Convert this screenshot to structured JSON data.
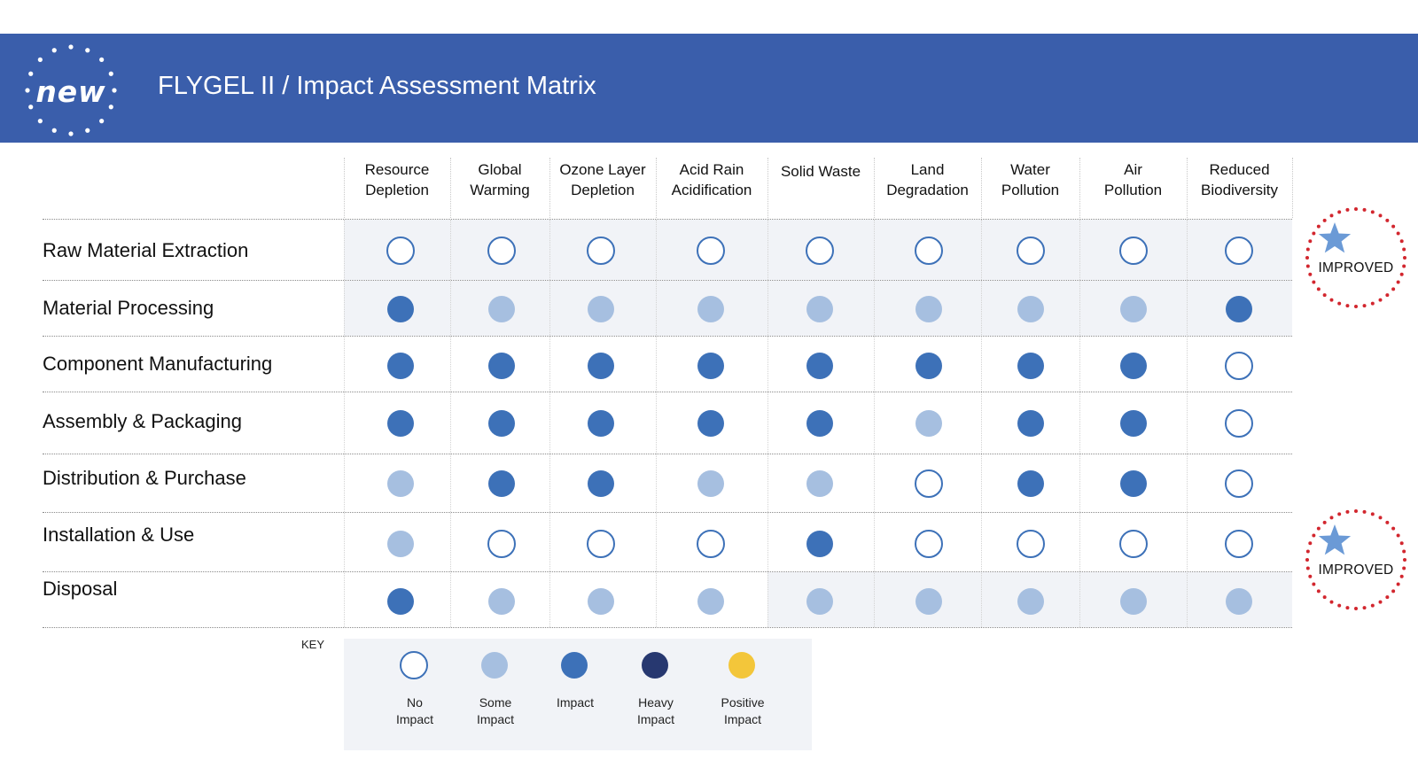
{
  "header": {
    "badge": "new",
    "title": "FLYGEL II / Impact Assessment Matrix",
    "background_color": "#3a5eab"
  },
  "columns": [
    [
      "Resource",
      "Depletion"
    ],
    [
      "Global",
      "Warming"
    ],
    [
      "Ozone Layer",
      "Depletion"
    ],
    [
      "Acid Rain",
      "Acidification"
    ],
    [
      "Solid Waste"
    ],
    [
      "Land",
      "Degradation"
    ],
    [
      "Water",
      "Pollution"
    ],
    [
      "Air",
      "Pollution"
    ],
    [
      "Reduced",
      "Biodiversity"
    ]
  ],
  "rows": [
    {
      "label": "Raw Material Extraction",
      "values": [
        "none",
        "none",
        "none",
        "none",
        "none",
        "none",
        "none",
        "none",
        "none"
      ],
      "improved": true
    },
    {
      "label": "Material Processing",
      "values": [
        "impact",
        "some",
        "some",
        "some",
        "some",
        "some",
        "some",
        "some",
        "impact"
      ],
      "improved": false
    },
    {
      "label": "Component Manufacturing",
      "values": [
        "impact",
        "impact",
        "impact",
        "impact",
        "impact",
        "impact",
        "impact",
        "impact",
        "none"
      ],
      "improved": false
    },
    {
      "label": "Assembly & Packaging",
      "values": [
        "impact",
        "impact",
        "impact",
        "impact",
        "impact",
        "some",
        "impact",
        "impact",
        "none"
      ],
      "improved": false
    },
    {
      "label": "Distribution & Purchase",
      "values": [
        "some",
        "impact",
        "impact",
        "some",
        "some",
        "none",
        "impact",
        "impact",
        "none"
      ],
      "improved": false
    },
    {
      "label": "Installation & Use",
      "values": [
        "some",
        "none",
        "none",
        "none",
        "impact",
        "none",
        "none",
        "none",
        "none"
      ],
      "improved": true
    },
    {
      "label": "Disposal",
      "values": [
        "impact",
        "some",
        "some",
        "some",
        "some",
        "some",
        "some",
        "some",
        "some"
      ],
      "improved": false
    }
  ],
  "improved_label": "IMPROVED",
  "key": {
    "label": "KEY",
    "items": [
      {
        "level": "none",
        "lines": [
          "No",
          "Impact"
        ]
      },
      {
        "level": "some",
        "lines": [
          "Some",
          "Impact"
        ]
      },
      {
        "level": "impact",
        "lines": [
          "Impact"
        ]
      },
      {
        "level": "heavy",
        "lines": [
          "Heavy",
          "Impact"
        ]
      },
      {
        "level": "positive",
        "lines": [
          "Positive",
          "Impact"
        ]
      }
    ]
  },
  "colors": {
    "no_impact_border": "#3d71b8",
    "some_impact": "#a6bfe0",
    "impact": "#3d71b8",
    "heavy_impact": "#273870",
    "positive_impact": "#f3c63a",
    "improved_ring": "#d2262e",
    "improved_star": "#6b9ad6"
  }
}
